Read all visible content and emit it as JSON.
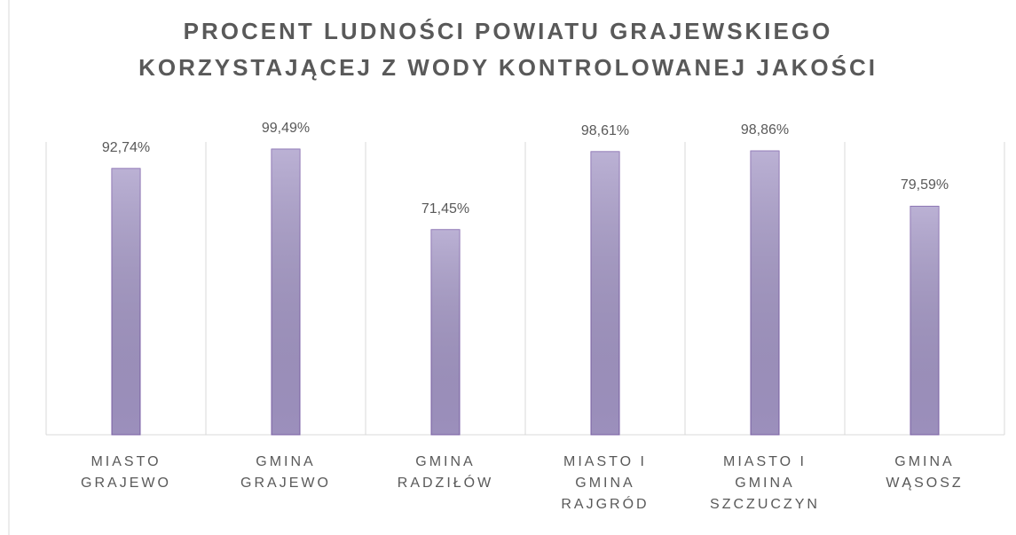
{
  "chart_data": {
    "type": "bar",
    "title": [
      "PROCENT LUDNOŚCI POWIATU GRAJEWSKIEGO",
      "KORZYSTAJĄCEJ Z WODY KONTROLOWANEJ JAKOŚCI"
    ],
    "categories": [
      "MIASTO GRAJEWO",
      "GMINA GRAJEWO",
      "GMINA RADZIŁÓW",
      "MIASTO I GMINA RAJGRÓD",
      "MIASTO I GMINA SZCZUCZYN",
      "GMINA WĄSOSZ"
    ],
    "values": [
      92.74,
      99.49,
      71.45,
      98.61,
      98.86,
      79.59
    ],
    "value_labels": [
      "92,74%",
      "99,49%",
      "71,45%",
      "98,61%",
      "98,86%",
      "79,59%"
    ],
    "color": "#a497c6"
  }
}
